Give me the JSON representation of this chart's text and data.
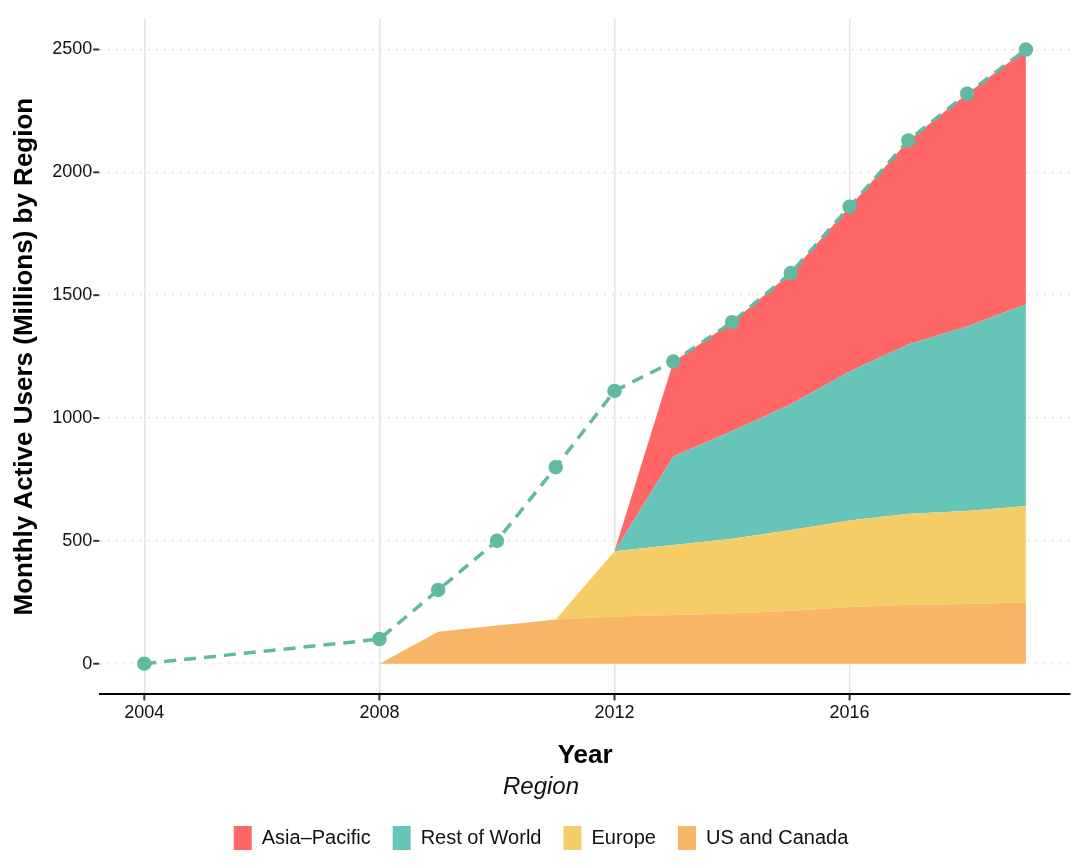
{
  "chart_data": {
    "type": "area",
    "stacked": true,
    "xlabel": "Year",
    "ylabel": "Monthly Active Users (Millions) by Region",
    "legend_title": "Region",
    "legend": "bottom",
    "grid": true,
    "xlim": [
      2003.25,
      2019.75
    ],
    "xticks": [
      2004,
      2008,
      2012,
      2016
    ],
    "ylim": [
      -125,
      2625
    ],
    "yticks": [
      0,
      500,
      1000,
      1500,
      2000,
      2500
    ],
    "x": [
      2008,
      2009,
      2010,
      2011,
      2012,
      2013,
      2014,
      2015,
      2016,
      2017,
      2018,
      2019
    ],
    "series": [
      {
        "name": "US and Canada",
        "color": "#f8b566",
        "values": [
          0,
          130,
          155,
          180,
          192,
          198,
          205,
          215,
          231,
          240,
          243,
          250
        ]
      },
      {
        "name": "Europe",
        "color": "#f5cd66",
        "values": [
          null,
          null,
          null,
          0,
          266,
          285,
          304,
          329,
          352,
          370,
          379,
          392
        ]
      },
      {
        "name": "Rest of World",
        "color": "#66c5b8",
        "values": [
          null,
          null,
          null,
          null,
          0,
          360,
          438,
          512,
          606,
          689,
          751,
          821
        ]
      },
      {
        "name": "Asia–Pacific",
        "color": "#ff6666",
        "values": [
          null,
          null,
          null,
          null,
          0,
          385,
          443,
          534,
          671,
          831,
          947,
          1037
        ]
      },
      {
        "type": "line",
        "color": "#62b9a2",
        "marker": "circle",
        "line_style": "dashed",
        "x": [
          2004,
          2008,
          2009,
          2010,
          2011,
          2012,
          2013,
          2014,
          2015,
          2016,
          2017,
          2018,
          2019
        ],
        "values": [
          0,
          100,
          300,
          500,
          800,
          1110,
          1230,
          1390,
          1590,
          1860,
          2130,
          2320,
          2500
        ]
      }
    ]
  }
}
